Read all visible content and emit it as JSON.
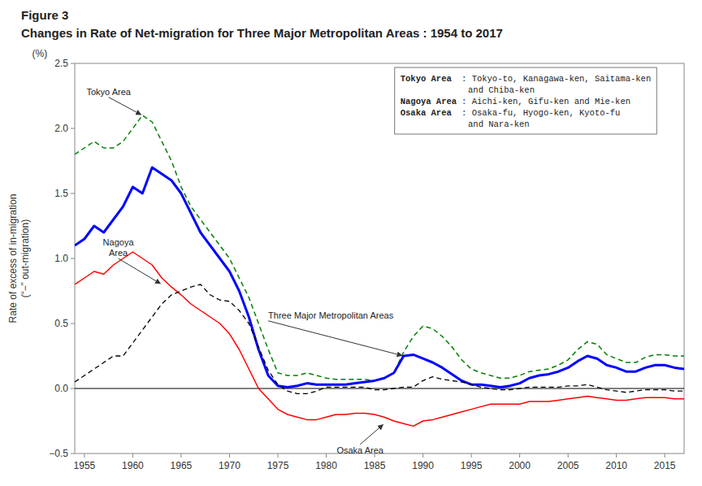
{
  "chart_data": {
    "type": "line",
    "title": "Figure 3",
    "subtitle": "Changes in Rate of Net-migration for Three Major Metropolitan Areas : 1954 to 2017",
    "y_label": "Rate of excess of in-migration\n(“−” out-migration)",
    "y_unit": "(%)",
    "xlim": [
      1954,
      2017
    ],
    "ylim": [
      -0.5,
      2.5
    ],
    "xticks": [
      1955,
      1960,
      1965,
      1970,
      1975,
      1980,
      1985,
      1990,
      1995,
      2000,
      2005,
      2010,
      2015
    ],
    "yticks": [
      {
        "value": -0.5,
        "label": "−0.5"
      },
      {
        "value": 0.0,
        "label": "0.0"
      },
      0.5,
      {
        "value": 1.0,
        "label": "1.0"
      },
      1.5,
      {
        "value": 2.0,
        "label": "2.0"
      },
      2.5
    ],
    "x": [
      1954,
      1955,
      1956,
      1957,
      1958,
      1959,
      1960,
      1961,
      1962,
      1963,
      1964,
      1965,
      1966,
      1967,
      1968,
      1969,
      1970,
      1971,
      1972,
      1973,
      1974,
      1975,
      1976,
      1977,
      1978,
      1979,
      1980,
      1981,
      1982,
      1983,
      1984,
      1985,
      1986,
      1987,
      1988,
      1989,
      1990,
      1991,
      1992,
      1993,
      1994,
      1995,
      1996,
      1997,
      1998,
      1999,
      2000,
      2001,
      2002,
      2003,
      2004,
      2005,
      2006,
      2007,
      2008,
      2009,
      2010,
      2011,
      2012,
      2013,
      2014,
      2015,
      2016,
      2017
    ],
    "series": [
      {
        "color": "#008000",
        "line_style": "dashed",
        "values": [
          1.8,
          1.85,
          1.9,
          1.85,
          1.85,
          1.9,
          2.0,
          2.1,
          2.05,
          1.9,
          1.75,
          1.55,
          1.4,
          1.3,
          1.2,
          1.1,
          1.0,
          0.85,
          0.7,
          0.5,
          0.3,
          0.12,
          0.1,
          0.1,
          0.12,
          0.1,
          0.08,
          0.07,
          0.07,
          0.07,
          0.07,
          0.06,
          0.08,
          0.12,
          0.28,
          0.4,
          0.48,
          0.46,
          0.4,
          0.32,
          0.22,
          0.15,
          0.12,
          0.1,
          0.08,
          0.08,
          0.1,
          0.13,
          0.14,
          0.15,
          0.18,
          0.22,
          0.3,
          0.36,
          0.34,
          0.26,
          0.23,
          0.2,
          0.2,
          0.24,
          0.26,
          0.26,
          0.25,
          0.25
        ]
      },
      {
        "color": "#0000FF",
        "line_style": "solid",
        "values": [
          1.1,
          1.15,
          1.25,
          1.2,
          1.3,
          1.4,
          1.55,
          1.5,
          1.7,
          1.65,
          1.6,
          1.5,
          1.35,
          1.2,
          1.1,
          1.0,
          0.9,
          0.75,
          0.55,
          0.3,
          0.1,
          0.02,
          0.01,
          0.02,
          0.04,
          0.03,
          0.03,
          0.03,
          0.03,
          0.04,
          0.05,
          0.06,
          0.08,
          0.12,
          0.25,
          0.26,
          0.23,
          0.2,
          0.16,
          0.11,
          0.06,
          0.03,
          0.03,
          0.02,
          0.01,
          0.02,
          0.04,
          0.08,
          0.1,
          0.11,
          0.13,
          0.16,
          0.21,
          0.25,
          0.23,
          0.18,
          0.16,
          0.13,
          0.13,
          0.16,
          0.18,
          0.18,
          0.16,
          0.15
        ]
      },
      {
        "color": "#FF0000",
        "line_style": "solid",
        "values": [
          0.8,
          0.85,
          0.9,
          0.88,
          0.95,
          1.0,
          1.05,
          1.0,
          0.95,
          0.85,
          0.78,
          0.72,
          0.65,
          0.6,
          0.55,
          0.5,
          0.42,
          0.3,
          0.15,
          0.0,
          -0.08,
          -0.16,
          -0.2,
          -0.22,
          -0.24,
          -0.24,
          -0.22,
          -0.2,
          -0.2,
          -0.19,
          -0.19,
          -0.2,
          -0.22,
          -0.25,
          -0.27,
          -0.29,
          -0.25,
          -0.24,
          -0.22,
          -0.2,
          -0.18,
          -0.16,
          -0.14,
          -0.12,
          -0.12,
          -0.12,
          -0.12,
          -0.1,
          -0.1,
          -0.1,
          -0.09,
          -0.08,
          -0.07,
          -0.06,
          -0.07,
          -0.08,
          -0.09,
          -0.09,
          -0.08,
          -0.07,
          -0.07,
          -0.07,
          -0.08,
          -0.08
        ]
      },
      {
        "color": "#000000",
        "line_style": "dashed",
        "values": [
          0.05,
          0.1,
          0.15,
          0.2,
          0.25,
          0.25,
          0.35,
          0.45,
          0.55,
          0.65,
          0.72,
          0.75,
          0.78,
          0.8,
          0.72,
          0.68,
          0.67,
          0.6,
          0.5,
          0.32,
          0.14,
          0.03,
          -0.02,
          -0.04,
          -0.04,
          -0.02,
          0.01,
          0.01,
          0.01,
          0.01,
          0.01,
          -0.01,
          -0.01,
          0.0,
          0.01,
          0.01,
          0.06,
          0.09,
          0.07,
          0.06,
          0.05,
          0.03,
          0.01,
          -0.0,
          -0.01,
          -0.01,
          -0.0,
          0.01,
          0.01,
          0.01,
          0.01,
          0.02,
          0.02,
          0.03,
          0.01,
          -0.01,
          -0.02,
          -0.03,
          -0.02,
          -0.01,
          -0.01,
          -0.01,
          -0.02,
          -0.02
        ]
      }
    ],
    "annotations": [
      {
        "text": "Tokyo Area",
        "x": 1961,
        "y": 2.1,
        "text_x": 1957.5,
        "text_y": 2.24
      },
      {
        "text": "Nagoya\nArea",
        "x": 1963,
        "y": 0.8,
        "text_x": 1958.5,
        "text_y": 1.0
      },
      {
        "text": "Three Major Metropolitan Areas",
        "x": 1988,
        "y": 0.25,
        "text_x": 1974,
        "text_y": 0.52
      },
      {
        "text": "Osaka Area",
        "x": 1986,
        "y": -0.27,
        "text_x": 1983.5,
        "text_y": -0.43
      }
    ],
    "notes": [
      {
        "label": "Tokyo Area",
        "lines": [
          ": Tokyo-to, Kanagawa-ken, Saitama-ken",
          "and Chiba-ken"
        ]
      },
      {
        "label": "Nagoya Area",
        "lines": [
          ": Aichi-ken, Gifu-ken and Mie-ken"
        ]
      },
      {
        "label": "Osaka Area",
        "lines": [
          ": Osaka-fu, Hyogo-ken, Kyoto-fu",
          "and Nara-ken"
        ]
      }
    ]
  }
}
